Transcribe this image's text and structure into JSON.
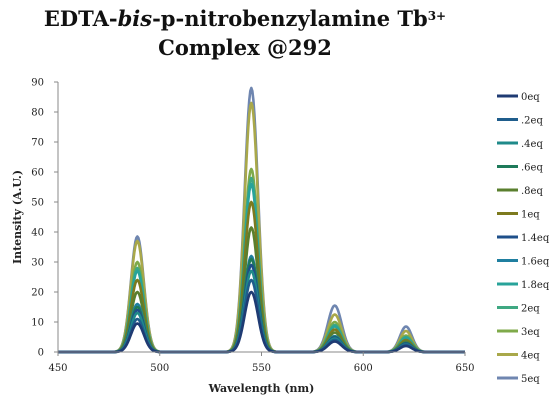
{
  "title": {
    "line1_prefix": "EDTA-",
    "line1_italic": "bis",
    "line1_suffix": "-p-nitrobenzylamine Tb",
    "line1_sup": "3+",
    "line2": "Complex @292"
  },
  "chart_data": {
    "type": "line",
    "title": "EDTA-bis-p-nitrobenzylamine Tb3+ Complex @292",
    "xlabel": "Wavelength  (nm)",
    "ylabel": "Intensity (A.U.)",
    "xlim": [
      450,
      650
    ],
    "ylim": [
      0,
      90
    ],
    "x_ticks": [
      450,
      500,
      550,
      600,
      650
    ],
    "y_ticks": [
      0,
      10,
      20,
      30,
      40,
      50,
      60,
      70,
      80,
      90
    ],
    "grid": false,
    "legend_position": "right",
    "peak_wavelengths": [
      489,
      545,
      586,
      621
    ],
    "series": [
      {
        "name": "0eq",
        "color": "#1f3b73",
        "peaks": [
          9.5,
          20,
          3.5,
          2
        ]
      },
      {
        "name": ".2eq",
        "color": "#1f5d8c",
        "peaks": [
          11,
          24,
          4,
          2.3
        ]
      },
      {
        "name": ".4eq",
        "color": "#1f8a8a",
        "peaks": [
          13,
          27,
          4.5,
          2.5
        ]
      },
      {
        "name": ".6eq",
        "color": "#1e7a5a",
        "peaks": [
          15,
          31,
          5,
          3
        ]
      },
      {
        "name": ".8eq",
        "color": "#5a7f2e",
        "peaks": [
          20,
          41.5,
          6.5,
          3.5
        ]
      },
      {
        "name": "1eq",
        "color": "#7d7a1e",
        "peaks": [
          24,
          50,
          7.5,
          4
        ]
      },
      {
        "name": "1.4eq",
        "color": "#1e4f8a",
        "peaks": [
          14,
          29,
          4.8,
          2.8
        ]
      },
      {
        "name": "1.6eq",
        "color": "#1f7fa0",
        "peaks": [
          16,
          32,
          5.3,
          3
        ]
      },
      {
        "name": "1.8eq",
        "color": "#28a39a",
        "peaks": [
          27,
          56,
          8.5,
          4.8
        ]
      },
      {
        "name": "2eq",
        "color": "#3fa882",
        "peaks": [
          28,
          58,
          9,
          5
        ]
      },
      {
        "name": "3eq",
        "color": "#7faa4a",
        "peaks": [
          30,
          61,
          10,
          5.5
        ]
      },
      {
        "name": "4eq",
        "color": "#a9a84a",
        "peaks": [
          37,
          83,
          12.5,
          7
        ]
      },
      {
        "name": "5eq",
        "color": "#6f86b0",
        "peaks": [
          38.5,
          88,
          15.5,
          8.5
        ]
      }
    ]
  }
}
